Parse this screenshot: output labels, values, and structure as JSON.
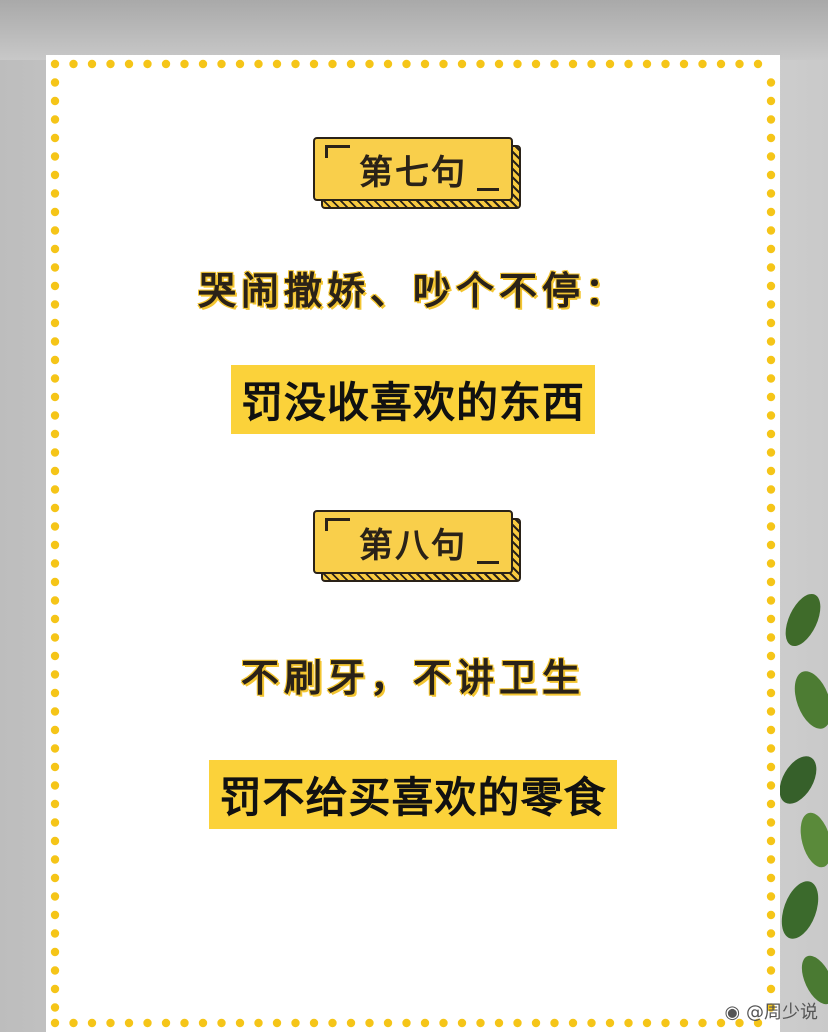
{
  "sections": [
    {
      "label": "第七句",
      "question": "哭闹撒娇、吵个不停：",
      "answer": "罚没收喜欢的东西"
    },
    {
      "label": "第八句",
      "question": "不刷牙，不讲卫生",
      "answer": "罚不给买喜欢的零食"
    }
  ],
  "watermark": {
    "icon": "weibo-icon",
    "text": "@周少说"
  },
  "colors": {
    "accent": "#fbd23a",
    "border_dots": "#f5c518",
    "text": "#2a2218"
  }
}
